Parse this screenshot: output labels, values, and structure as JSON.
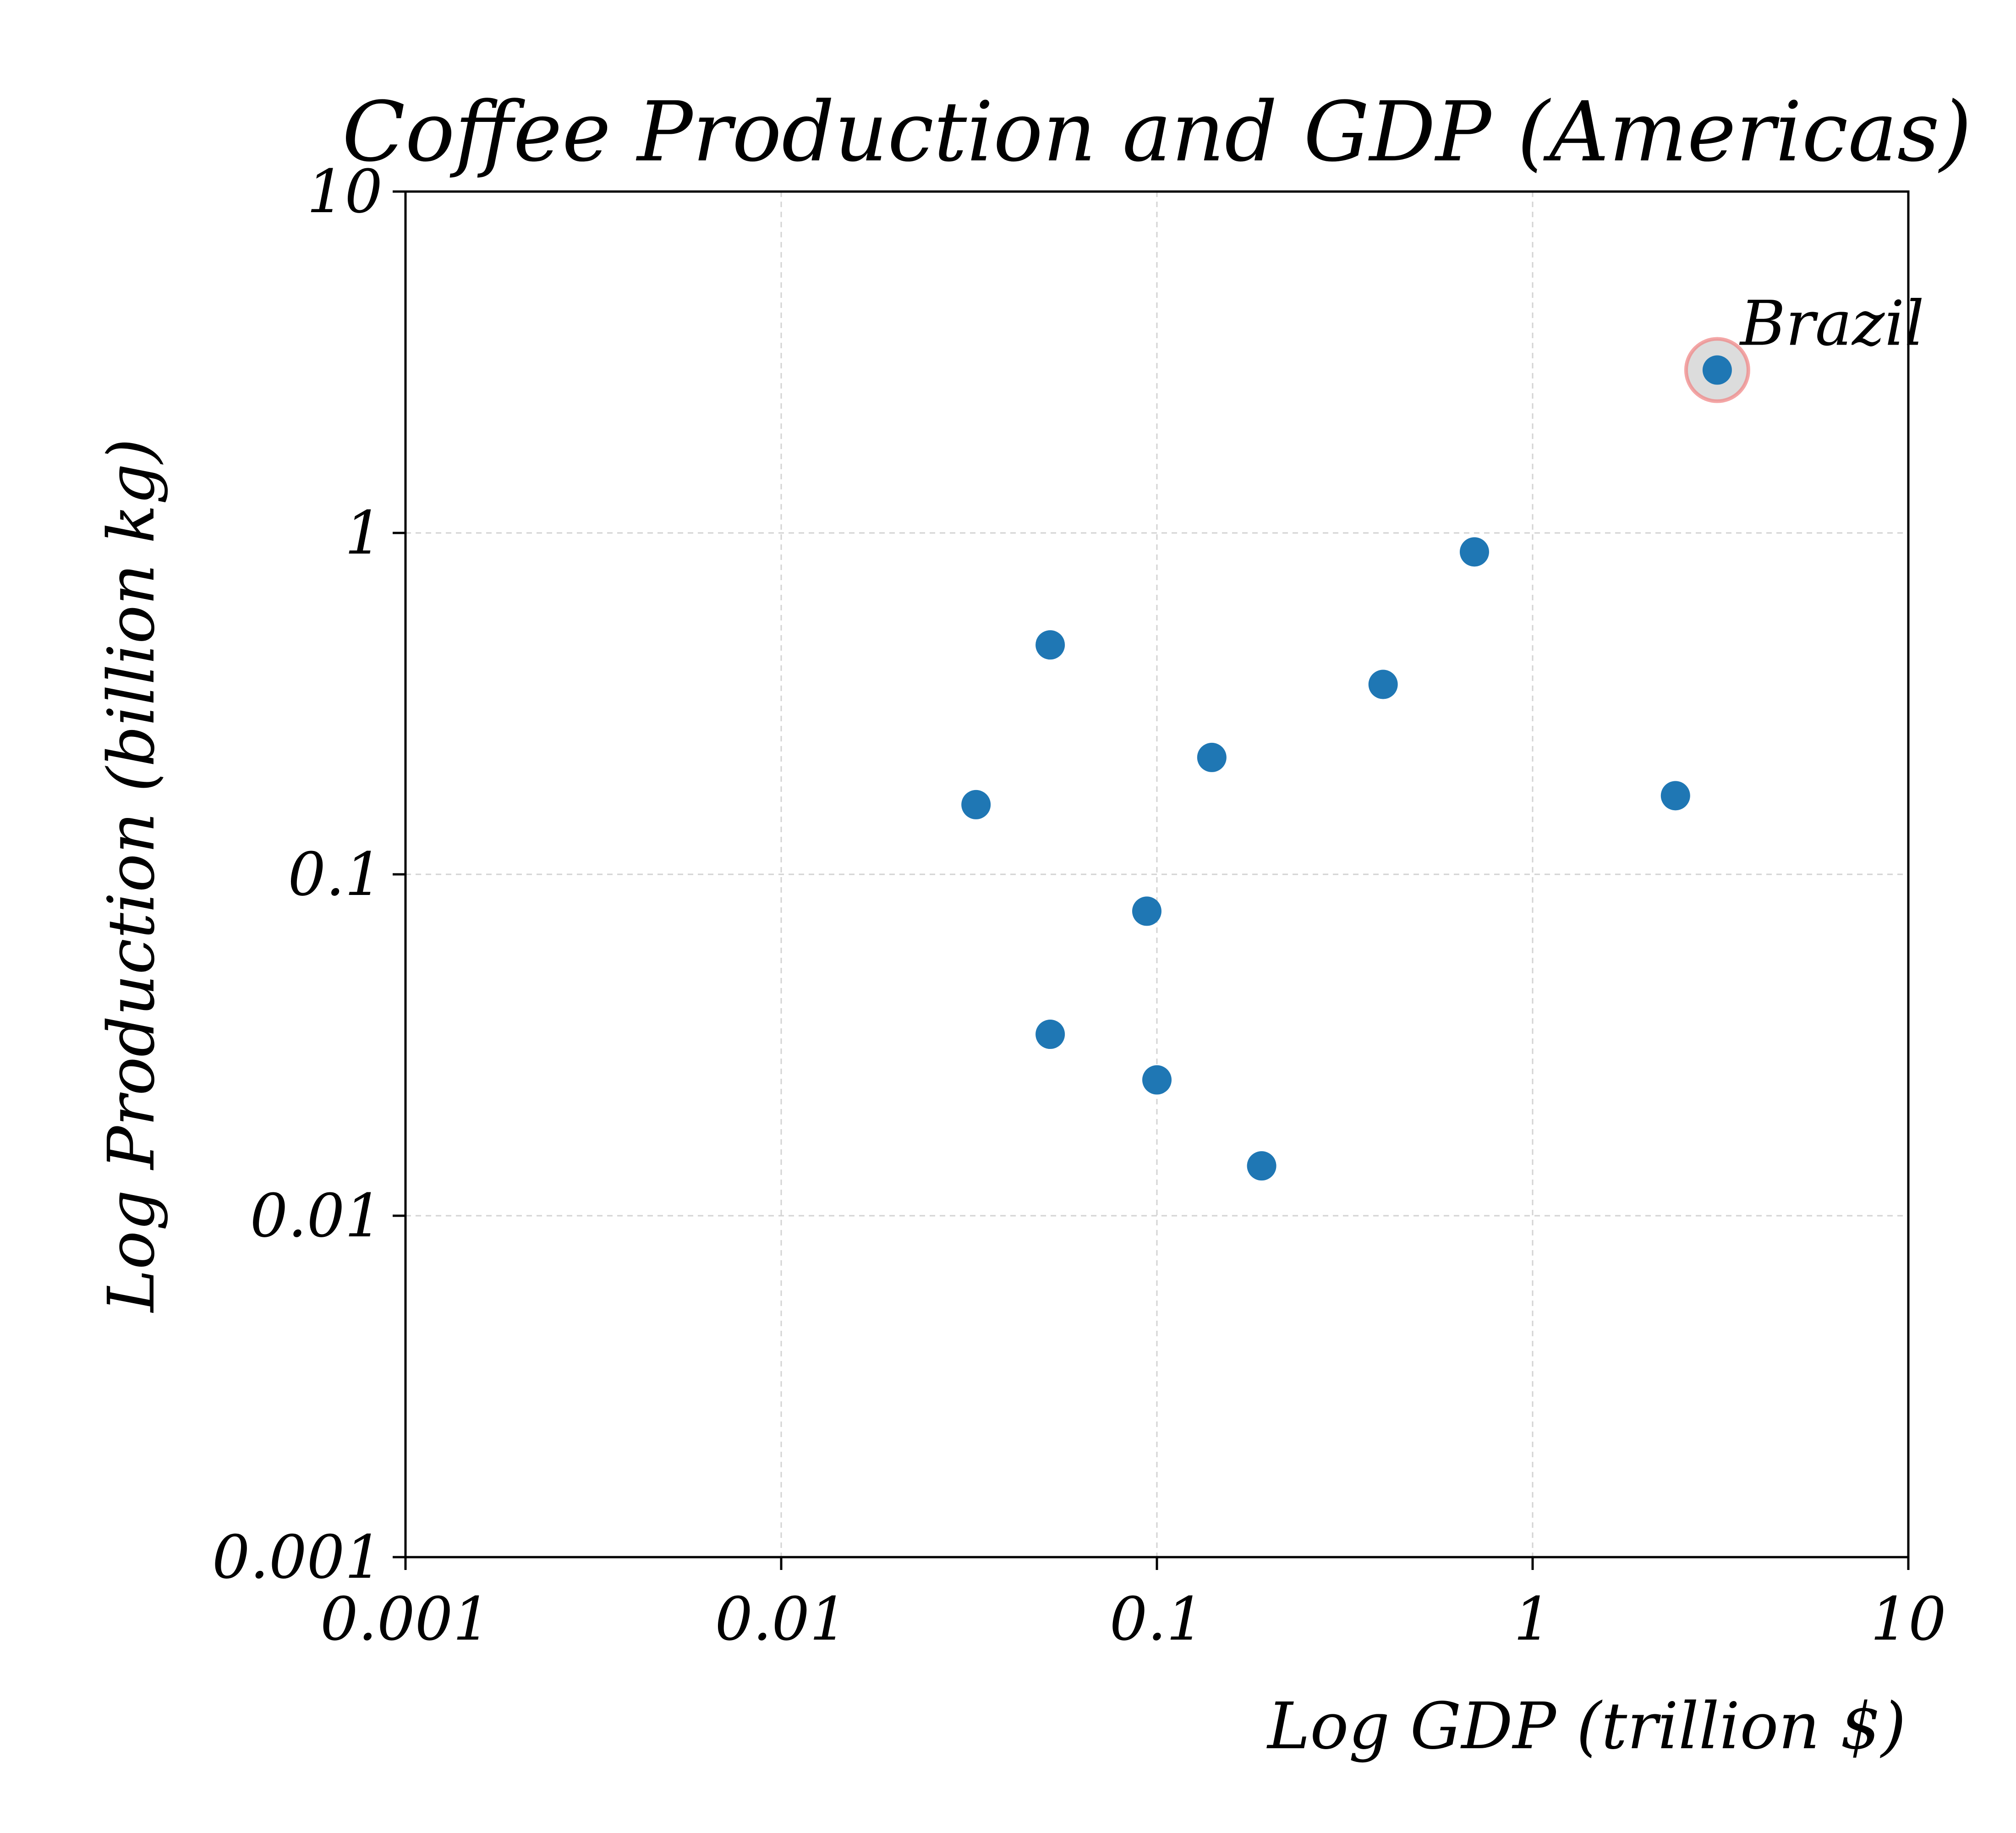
{
  "chart_data": {
    "type": "scatter",
    "title": "Coffee Production and GDP (Americas)",
    "xlabel": "Log GDP (trillion $)",
    "ylabel": "Log Production (billion kg)",
    "xscale": "log",
    "yscale": "log",
    "xlim": [
      0.001,
      10
    ],
    "ylim": [
      0.001,
      10
    ],
    "grid": true,
    "x_ticks": [
      {
        "value": 0.001,
        "label": "0.001"
      },
      {
        "value": 0.01,
        "label": "0.01"
      },
      {
        "value": 0.1,
        "label": "0.1"
      },
      {
        "value": 1,
        "label": "1"
      },
      {
        "value": 10,
        "label": "10"
      }
    ],
    "y_ticks": [
      {
        "value": 0.001,
        "label": "0.001"
      },
      {
        "value": 0.01,
        "label": "0.01"
      },
      {
        "value": 0.1,
        "label": "0.1"
      },
      {
        "value": 1,
        "label": "1"
      },
      {
        "value": 10,
        "label": "10"
      }
    ],
    "marker_color": "#1f77b4",
    "highlight_color": "#f08080",
    "points": [
      {
        "x": 3.1,
        "y": 3.0
      },
      {
        "x": 0.7,
        "y": 0.88
      },
      {
        "x": 0.052,
        "y": 0.47
      },
      {
        "x": 0.4,
        "y": 0.36
      },
      {
        "x": 0.14,
        "y": 0.22
      },
      {
        "x": 0.033,
        "y": 0.16
      },
      {
        "x": 2.4,
        "y": 0.17
      },
      {
        "x": 0.094,
        "y": 0.078
      },
      {
        "x": 0.052,
        "y": 0.034
      },
      {
        "x": 0.1,
        "y": 0.025
      },
      {
        "x": 0.19,
        "y": 0.014
      }
    ],
    "annotations": [
      {
        "text": "Brazil",
        "x": 3.1,
        "y": 3.0,
        "highlighted": true
      }
    ]
  }
}
